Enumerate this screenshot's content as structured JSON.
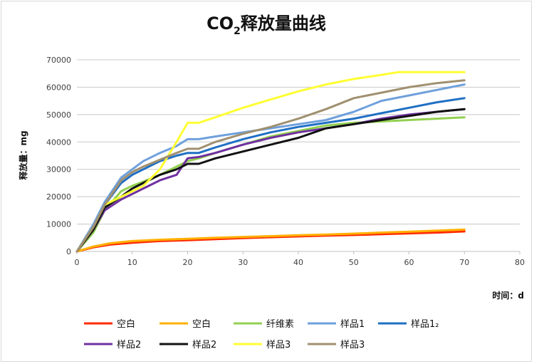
{
  "chart_data": {
    "type": "line",
    "title_main": "CO",
    "title_sub": "2",
    "title_rest": "释放量曲线",
    "xlabel": "时间：d",
    "ylabel": "释放量：mg",
    "xlim": [
      0,
      80
    ],
    "ylim": [
      0,
      70000
    ],
    "xticks": [
      "0",
      "10",
      "20",
      "30",
      "40",
      "50",
      "60",
      "70",
      "80"
    ],
    "yticks": [
      "0",
      "10000",
      "20000",
      "30000",
      "40000",
      "50000",
      "60000",
      "70000"
    ],
    "grid": true,
    "legend_position": "bottom",
    "series": [
      {
        "name": "空白",
        "color": "#ff2a00",
        "points": [
          [
            0,
            0
          ],
          [
            3,
            1500
          ],
          [
            6,
            2500
          ],
          [
            10,
            3200
          ],
          [
            15,
            3800
          ],
          [
            20,
            4100
          ],
          [
            25,
            4500
          ],
          [
            30,
            4900
          ],
          [
            35,
            5200
          ],
          [
            40,
            5500
          ],
          [
            45,
            5800
          ],
          [
            50,
            6000
          ],
          [
            55,
            6300
          ],
          [
            60,
            6600
          ],
          [
            65,
            6900
          ],
          [
            70,
            7300
          ]
        ]
      },
      {
        "name": "空白",
        "color": "#ffb000",
        "points": [
          [
            0,
            0
          ],
          [
            3,
            1800
          ],
          [
            6,
            3000
          ],
          [
            10,
            3800
          ],
          [
            15,
            4300
          ],
          [
            20,
            4600
          ],
          [
            25,
            5000
          ],
          [
            30,
            5300
          ],
          [
            35,
            5600
          ],
          [
            40,
            5900
          ],
          [
            45,
            6200
          ],
          [
            50,
            6500
          ],
          [
            55,
            6900
          ],
          [
            60,
            7200
          ],
          [
            65,
            7600
          ],
          [
            70,
            8000
          ]
        ]
      },
      {
        "name": "纤维素",
        "color": "#92d050",
        "points": [
          [
            0,
            0
          ],
          [
            3,
            7000
          ],
          [
            5,
            15000
          ],
          [
            8,
            22000
          ],
          [
            10,
            24000
          ],
          [
            12,
            25500
          ],
          [
            15,
            28000
          ],
          [
            18,
            31000
          ],
          [
            20,
            33000
          ],
          [
            22,
            34000
          ],
          [
            25,
            36000
          ],
          [
            30,
            39000
          ],
          [
            35,
            42000
          ],
          [
            40,
            44000
          ],
          [
            45,
            46000
          ],
          [
            50,
            47000
          ],
          [
            55,
            47500
          ],
          [
            60,
            48000
          ],
          [
            65,
            48500
          ],
          [
            70,
            49000
          ]
        ]
      },
      {
        "name": "样品1",
        "color": "#6fa0dc",
        "points": [
          [
            0,
            0
          ],
          [
            3,
            10000
          ],
          [
            5,
            18000
          ],
          [
            8,
            27000
          ],
          [
            10,
            30000
          ],
          [
            12,
            33000
          ],
          [
            15,
            36000
          ],
          [
            18,
            38500
          ],
          [
            20,
            41000
          ],
          [
            22,
            41000
          ],
          [
            25,
            42000
          ],
          [
            30,
            43500
          ],
          [
            35,
            45000
          ],
          [
            40,
            46500
          ],
          [
            45,
            48000
          ],
          [
            50,
            51000
          ],
          [
            55,
            55000
          ],
          [
            60,
            57000
          ],
          [
            65,
            59000
          ],
          [
            70,
            61000
          ]
        ]
      },
      {
        "name": "样品1₂",
        "color": "#1f6fc4",
        "points": [
          [
            0,
            0
          ],
          [
            3,
            9000
          ],
          [
            5,
            17000
          ],
          [
            8,
            25000
          ],
          [
            10,
            28000
          ],
          [
            12,
            30000
          ],
          [
            15,
            33000
          ],
          [
            18,
            35000
          ],
          [
            20,
            36000
          ],
          [
            22,
            36000
          ],
          [
            25,
            38000
          ],
          [
            30,
            41000
          ],
          [
            35,
            43500
          ],
          [
            40,
            45500
          ],
          [
            45,
            47000
          ],
          [
            50,
            48500
          ],
          [
            55,
            50500
          ],
          [
            60,
            52500
          ],
          [
            65,
            54500
          ],
          [
            70,
            56000
          ]
        ]
      },
      {
        "name": "样品2",
        "color": "#7030a0",
        "points": [
          [
            0,
            0
          ],
          [
            3,
            8000
          ],
          [
            5,
            15000
          ],
          [
            8,
            19000
          ],
          [
            10,
            21000
          ],
          [
            12,
            23000
          ],
          [
            15,
            26000
          ],
          [
            18,
            28000
          ],
          [
            20,
            34000
          ],
          [
            22,
            34500
          ],
          [
            25,
            36000
          ],
          [
            30,
            39000
          ],
          [
            35,
            41500
          ],
          [
            40,
            43500
          ],
          [
            45,
            45000
          ],
          [
            50,
            46500
          ],
          [
            55,
            48500
          ],
          [
            60,
            50000
          ],
          [
            65,
            51000
          ],
          [
            70,
            52000
          ]
        ]
      },
      {
        "name": "样品2",
        "color": "#111111",
        "points": [
          [
            0,
            0
          ],
          [
            3,
            8000
          ],
          [
            5,
            16000
          ],
          [
            8,
            20000
          ],
          [
            10,
            23000
          ],
          [
            12,
            25000
          ],
          [
            15,
            28000
          ],
          [
            18,
            30000
          ],
          [
            20,
            32000
          ],
          [
            22,
            32000
          ],
          [
            25,
            34000
          ],
          [
            30,
            36500
          ],
          [
            35,
            39000
          ],
          [
            40,
            41500
          ],
          [
            45,
            45000
          ],
          [
            50,
            46500
          ],
          [
            55,
            48000
          ],
          [
            60,
            49500
          ],
          [
            65,
            51000
          ],
          [
            70,
            52000
          ]
        ]
      },
      {
        "name": "样品3",
        "color": "#ffff33",
        "points": [
          [
            0,
            0
          ],
          [
            3,
            9000
          ],
          [
            5,
            17000
          ],
          [
            8,
            20000
          ],
          [
            10,
            22000
          ],
          [
            12,
            24000
          ],
          [
            15,
            30000
          ],
          [
            18,
            40000
          ],
          [
            20,
            47000
          ],
          [
            22,
            47000
          ],
          [
            25,
            49000
          ],
          [
            30,
            52500
          ],
          [
            35,
            55500
          ],
          [
            40,
            58500
          ],
          [
            45,
            61000
          ],
          [
            50,
            63000
          ],
          [
            55,
            64500
          ],
          [
            58,
            65500
          ],
          [
            60,
            65500
          ],
          [
            65,
            65500
          ],
          [
            70,
            65500
          ]
        ]
      },
      {
        "name": "样品3",
        "color": "#a09070",
        "points": [
          [
            0,
            0
          ],
          [
            3,
            9000
          ],
          [
            5,
            17000
          ],
          [
            8,
            26000
          ],
          [
            10,
            29000
          ],
          [
            12,
            31000
          ],
          [
            15,
            33500
          ],
          [
            18,
            36000
          ],
          [
            20,
            37500
          ],
          [
            22,
            37500
          ],
          [
            25,
            40000
          ],
          [
            30,
            43000
          ],
          [
            35,
            45500
          ],
          [
            40,
            48500
          ],
          [
            45,
            52000
          ],
          [
            50,
            56000
          ],
          [
            55,
            58000
          ],
          [
            60,
            60000
          ],
          [
            65,
            61500
          ],
          [
            70,
            62500
          ]
        ]
      }
    ]
  }
}
